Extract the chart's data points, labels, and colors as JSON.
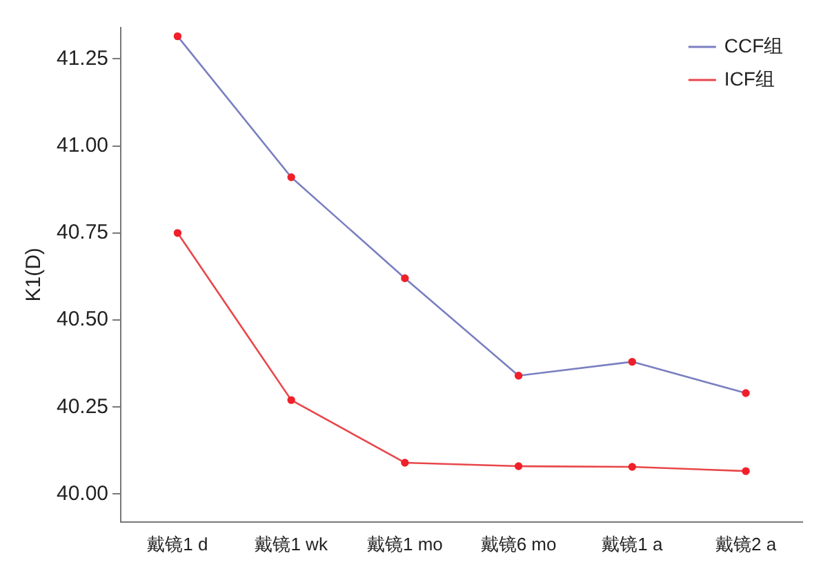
{
  "chart_data": {
    "type": "line",
    "ylabel": "K1(D)",
    "categories": [
      "戴镜1 d",
      "戴镜1 wk",
      "戴镜1 mo",
      "戴镜6 mo",
      "戴镜1 a",
      "戴镜2 a"
    ],
    "series": [
      {
        "name": "CCF组",
        "color": "#7a7fc0",
        "values": [
          41.315,
          40.91,
          40.62,
          40.34,
          40.38,
          40.29
        ]
      },
      {
        "name": "ICF组",
        "color": "#e8464a",
        "values": [
          40.75,
          40.27,
          40.09,
          40.08,
          40.078,
          40.066
        ]
      }
    ],
    "ylim": [
      39.92,
      41.34
    ],
    "yticks": [
      {
        "value": 40,
        "label": "40.00"
      },
      {
        "value": 40.25,
        "label": "40.25"
      },
      {
        "value": 40.5,
        "label": "40.50"
      },
      {
        "value": 40.75,
        "label": "40.75"
      },
      {
        "value": 41,
        "label": "41.00"
      },
      {
        "value": 41.25,
        "label": "41.25"
      }
    ],
    "grid": false,
    "legend": "top right",
    "marker": "circle",
    "line_style": "solid"
  }
}
